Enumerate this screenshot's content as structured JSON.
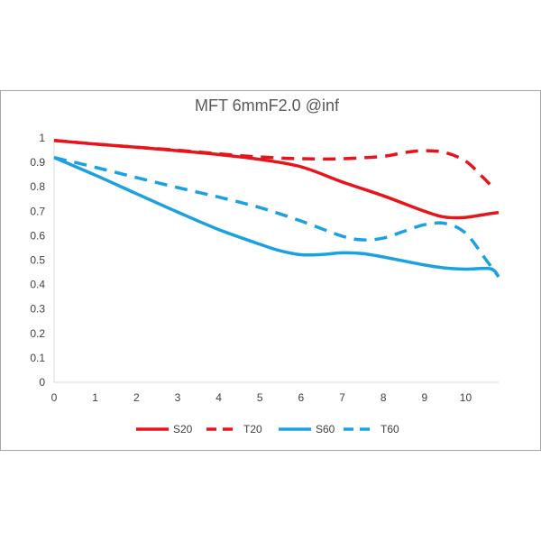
{
  "chart_data": {
    "type": "line",
    "title": "MFT  6mmF2.0 @inf",
    "xlabel": "",
    "ylabel": "",
    "xlim": [
      0,
      10.8
    ],
    "ylim": [
      0,
      1
    ],
    "x_ticks": [
      "0",
      "1",
      "2",
      "3",
      "4",
      "5",
      "6",
      "7",
      "8",
      "9",
      "10"
    ],
    "y_ticks": [
      "0",
      "0.1",
      "0.2",
      "0.3",
      "0.4",
      "0.5",
      "0.6",
      "0.7",
      "0.8",
      "0.9",
      "1"
    ],
    "grid": false,
    "legend_position": "bottom",
    "series": [
      {
        "name": "S20",
        "color": "#e8141b",
        "dash": "solid",
        "x": [
          0,
          1,
          2,
          3,
          4,
          5,
          6,
          7,
          8,
          9,
          9.5,
          10,
          10.5,
          10.8
        ],
        "y": [
          0.99,
          0.975,
          0.962,
          0.948,
          0.932,
          0.912,
          0.882,
          0.82,
          0.763,
          0.7,
          0.676,
          0.675,
          0.688,
          0.695
        ]
      },
      {
        "name": "T20",
        "color": "#e8141b",
        "dash": "dashed",
        "x": [
          0,
          1,
          2,
          3,
          4,
          5,
          6,
          7,
          8,
          8.5,
          9,
          9.5,
          10,
          10.4,
          10.7
        ],
        "y": [
          0.99,
          0.975,
          0.962,
          0.95,
          0.935,
          0.922,
          0.915,
          0.915,
          0.925,
          0.94,
          0.948,
          0.94,
          0.905,
          0.842,
          0.79
        ]
      },
      {
        "name": "S60",
        "color": "#1ba1e2",
        "dash": "solid",
        "x": [
          0,
          1,
          2,
          3,
          4,
          5,
          5.5,
          6,
          6.5,
          7,
          7.5,
          8,
          9,
          9.5,
          10,
          10.6,
          10.8
        ],
        "y": [
          0.92,
          0.848,
          0.772,
          0.697,
          0.625,
          0.565,
          0.538,
          0.522,
          0.523,
          0.53,
          0.527,
          0.513,
          0.48,
          0.468,
          0.463,
          0.465,
          0.432
        ]
      },
      {
        "name": "T60",
        "color": "#1ba1e2",
        "dash": "dashed",
        "x": [
          0,
          1,
          2,
          3,
          4,
          5,
          6,
          7,
          7.5,
          8,
          8.5,
          9,
          9.5,
          10,
          10.5,
          10.8
        ],
        "y": [
          0.92,
          0.88,
          0.838,
          0.797,
          0.758,
          0.715,
          0.66,
          0.598,
          0.583,
          0.59,
          0.618,
          0.645,
          0.65,
          0.61,
          0.5,
          0.432
        ]
      }
    ]
  }
}
